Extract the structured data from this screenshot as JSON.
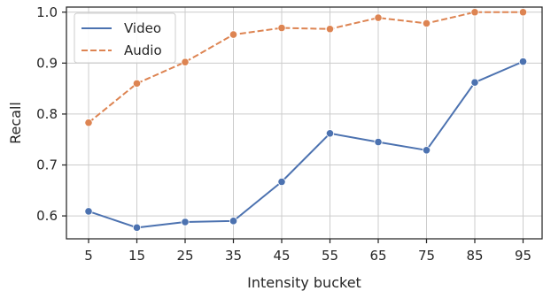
{
  "chart_data": {
    "type": "line",
    "title": "",
    "xlabel": "Intensity bucket",
    "ylabel": "Recall",
    "categories": [
      "5",
      "15",
      "25",
      "35",
      "45",
      "55",
      "65",
      "75",
      "85",
      "95"
    ],
    "ylim": [
      0.555,
      1.01
    ],
    "yticks": [
      0.6,
      0.7,
      0.8,
      0.9,
      1.0
    ],
    "ytick_labels": [
      "0.6",
      "0.7",
      "0.8",
      "0.9",
      "1.0"
    ],
    "grid": true,
    "legend_position": "top-left",
    "series": [
      {
        "name": "Video",
        "color": "#4c72b0",
        "linestyle": "solid",
        "marker": "circle",
        "values": [
          0.609,
          0.577,
          0.588,
          0.59,
          0.667,
          0.762,
          0.745,
          0.729,
          0.862,
          0.903
        ]
      },
      {
        "name": "Audio",
        "color": "#dd8452",
        "linestyle": "dashed",
        "marker": "circle",
        "values": [
          0.783,
          0.86,
          0.902,
          0.956,
          0.969,
          0.967,
          0.989,
          0.978,
          1.0,
          1.0
        ]
      }
    ]
  }
}
